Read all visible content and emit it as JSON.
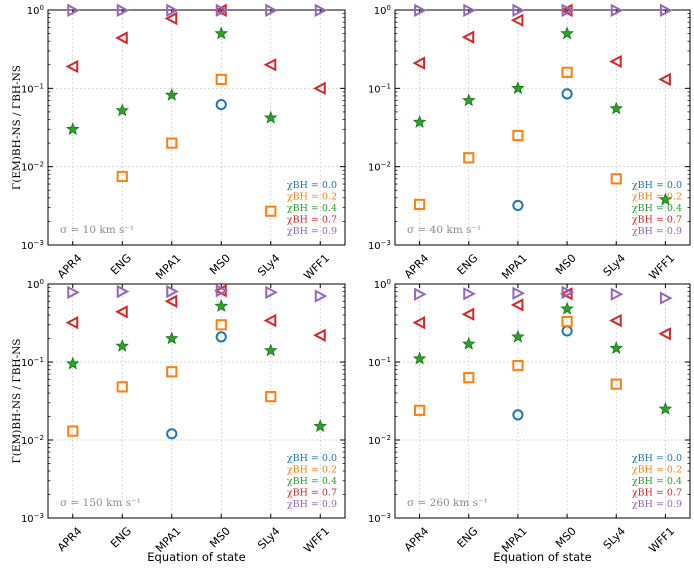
{
  "chart_data": [
    {
      "type": "scatter",
      "annotation": "σ = 10 km s⁻¹",
      "categories": [
        "APR4",
        "ENG",
        "MPA1",
        "MS0",
        "SLy4",
        "WFF1"
      ],
      "ylim": [
        0.001,
        1
      ],
      "yscale": "log",
      "ylabel": "Γ(EM)BH-NS / ΓBH-NS",
      "xlabel": "",
      "series": [
        {
          "name": "χBH = 0.0",
          "values": [
            null,
            null,
            null,
            0.062,
            null,
            null
          ]
        },
        {
          "name": "χBH = 0.2",
          "values": [
            null,
            0.0075,
            0.02,
            0.13,
            0.0027,
            null
          ]
        },
        {
          "name": "χBH = 0.4",
          "values": [
            0.03,
            0.052,
            0.082,
            0.5,
            0.042,
            null
          ]
        },
        {
          "name": "χBH = 0.7",
          "values": [
            0.19,
            0.44,
            0.78,
            0.99,
            0.2,
            0.1
          ]
        },
        {
          "name": "χBH = 0.9",
          "values": [
            0.99,
            0.99,
            0.99,
            0.99,
            0.99,
            0.99
          ]
        }
      ]
    },
    {
      "type": "scatter",
      "annotation": "σ = 40 km s⁻¹",
      "categories": [
        "APR4",
        "ENG",
        "MPA1",
        "MS0",
        "SLy4",
        "WFF1"
      ],
      "ylim": [
        0.001,
        1
      ],
      "yscale": "log",
      "ylabel": "",
      "xlabel": "",
      "series": [
        {
          "name": "χBH = 0.0",
          "values": [
            null,
            null,
            0.0032,
            0.085,
            null,
            null
          ]
        },
        {
          "name": "χBH = 0.2",
          "values": [
            0.0033,
            0.013,
            0.025,
            0.16,
            0.007,
            null
          ]
        },
        {
          "name": "χBH = 0.4",
          "values": [
            0.037,
            0.07,
            0.1,
            0.5,
            0.055,
            0.0038
          ]
        },
        {
          "name": "χBH = 0.7",
          "values": [
            0.21,
            0.45,
            0.74,
            0.99,
            0.22,
            0.13
          ]
        },
        {
          "name": "χBH = 0.9",
          "values": [
            0.99,
            0.99,
            0.99,
            0.99,
            0.99,
            0.99
          ]
        }
      ]
    },
    {
      "type": "scatter",
      "annotation": "σ = 150 km s⁻¹",
      "categories": [
        "APR4",
        "ENG",
        "MPA1",
        "MS0",
        "SLy4",
        "WFF1"
      ],
      "ylim": [
        0.001,
        1
      ],
      "yscale": "log",
      "ylabel": "Γ(EM)BH-NS / ΓBH-NS",
      "xlabel": "Equation of state",
      "series": [
        {
          "name": "χBH = 0.0",
          "values": [
            null,
            null,
            0.012,
            0.21,
            null,
            null
          ]
        },
        {
          "name": "χBH = 0.2",
          "values": [
            0.013,
            0.048,
            0.075,
            0.3,
            0.036,
            null
          ]
        },
        {
          "name": "χBH = 0.4",
          "values": [
            0.095,
            0.16,
            0.2,
            0.52,
            0.14,
            0.015
          ]
        },
        {
          "name": "χBH = 0.7",
          "values": [
            0.32,
            0.44,
            0.6,
            0.82,
            0.34,
            0.22
          ]
        },
        {
          "name": "χBH = 0.9",
          "values": [
            0.78,
            0.8,
            0.8,
            0.82,
            0.78,
            0.7
          ]
        }
      ]
    },
    {
      "type": "scatter",
      "annotation": "σ = 260 km s⁻¹",
      "categories": [
        "APR4",
        "ENG",
        "MPA1",
        "MS0",
        "SLy4",
        "WFF1"
      ],
      "ylim": [
        0.001,
        1
      ],
      "yscale": "log",
      "ylabel": "",
      "xlabel": "Equation of state",
      "series": [
        {
          "name": "χBH = 0.0",
          "values": [
            null,
            null,
            0.021,
            0.25,
            null,
            null
          ]
        },
        {
          "name": "χBH = 0.2",
          "values": [
            0.024,
            0.063,
            0.09,
            0.33,
            0.052,
            null
          ]
        },
        {
          "name": "χBH = 0.4",
          "values": [
            0.11,
            0.17,
            0.21,
            0.48,
            0.15,
            0.025
          ]
        },
        {
          "name": "χBH = 0.7",
          "values": [
            0.32,
            0.41,
            0.54,
            0.75,
            0.34,
            0.23
          ]
        },
        {
          "name": "χBH = 0.9",
          "values": [
            0.74,
            0.75,
            0.76,
            0.78,
            0.74,
            0.66
          ]
        }
      ]
    }
  ],
  "legend_entries": [
    "χBH = 0.0",
    "χBH = 0.2",
    "χBH = 0.4",
    "χBH = 0.7",
    "χBH = 0.9"
  ],
  "tick_labels": [
    "10⁰",
    "10⁻¹",
    "10⁻²",
    "10⁻³"
  ],
  "colors": {
    "c0": "#1f77b4",
    "c2": "#ff7f0e",
    "c4": "#2ca02c",
    "c7": "#d62728",
    "c9": "#9467bd",
    "grid": "#c8c8c8",
    "annotation": "#8a8a8a"
  }
}
